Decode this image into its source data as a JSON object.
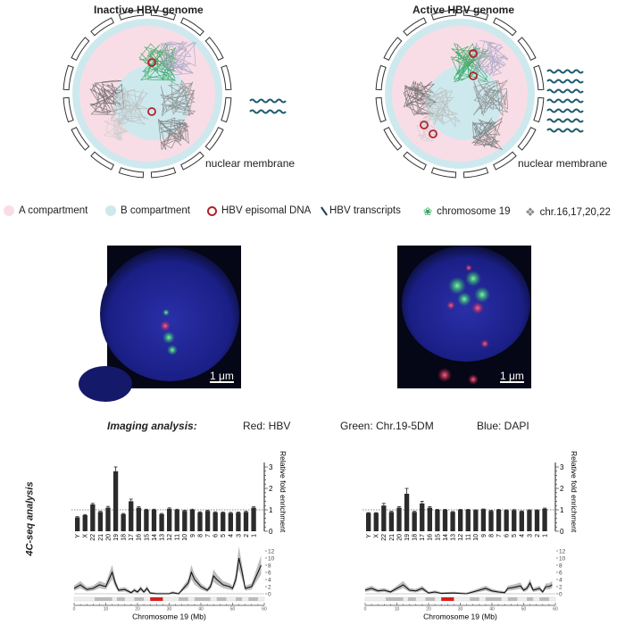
{
  "panels": {
    "inactive_title": "Inactive HBV genome",
    "active_title": "Active HBV genome",
    "membrane_label": "nuclear membrane"
  },
  "legend": [
    {
      "label": "A compartment",
      "icon": "pink-dot-icon",
      "color": "#f9dde6"
    },
    {
      "label": "B compartment",
      "icon": "cyan-dot-icon",
      "color": "#cde9ee"
    },
    {
      "label": "HBV episomal DNA",
      "icon": "red-ring-icon",
      "color": "#b0242a"
    },
    {
      "label": "HBV transcripts",
      "icon": "transcript-line-icon",
      "color": "#1c3f5a"
    },
    {
      "label": "chromosome 19",
      "icon": "green-chromatin-icon",
      "color": "#2fa35b"
    },
    {
      "label": "chr.16,17,20,22",
      "icon": "gray-chromatin-icon",
      "color": "#888888"
    }
  ],
  "microscopy": {
    "scale_bar": "1 μm"
  },
  "imaging": {
    "heading": "Imaging analysis:",
    "red": "Red: HBV",
    "green": "Green: Chr.19-5DM",
    "blue": "Blue: DAPI"
  },
  "side_label": "4C-seq analysis",
  "chart_data": [
    {
      "type": "bar",
      "panel": "inactive",
      "categories": [
        "Y",
        "X",
        "22",
        "21",
        "20",
        "19",
        "18",
        "17",
        "16",
        "15",
        "14",
        "13",
        "12",
        "11",
        "10",
        "9",
        "8",
        "7",
        "6",
        "5",
        "4",
        "3",
        "2",
        "1"
      ],
      "values": [
        0.65,
        0.75,
        1.25,
        0.9,
        1.1,
        2.8,
        0.8,
        1.4,
        1.1,
        1.0,
        1.0,
        0.8,
        1.05,
        1.0,
        0.95,
        1.0,
        0.88,
        0.95,
        0.88,
        0.87,
        0.85,
        0.87,
        0.9,
        1.1
      ],
      "errors": [
        0.03,
        0.03,
        0.05,
        0.03,
        0.06,
        0.2,
        0.03,
        0.1,
        0.04,
        0.03,
        0.03,
        0.03,
        0.04,
        0.03,
        0.03,
        0.03,
        0.03,
        0.03,
        0.03,
        0.03,
        0.03,
        0.03,
        0.03,
        0.04
      ],
      "ylabel": "Relative fold enrichment",
      "ylim": [
        0,
        3
      ],
      "yticks": [
        "0",
        "1",
        "2",
        "3"
      ],
      "reference_line": 1
    },
    {
      "type": "bar",
      "panel": "active",
      "categories": [
        "Y",
        "X",
        "22",
        "21",
        "20",
        "19",
        "18",
        "17",
        "16",
        "15",
        "14",
        "13",
        "12",
        "11",
        "10",
        "9",
        "8",
        "7",
        "6",
        "5",
        "4",
        "3",
        "2",
        "1"
      ],
      "values": [
        0.85,
        0.85,
        1.2,
        0.9,
        1.1,
        1.75,
        0.9,
        1.3,
        1.1,
        1.0,
        1.0,
        0.9,
        1.0,
        1.0,
        0.98,
        1.02,
        0.95,
        1.0,
        0.98,
        0.98,
        0.93,
        0.98,
        0.98,
        1.05
      ],
      "errors": [
        0.02,
        0.02,
        0.1,
        0.03,
        0.05,
        0.25,
        0.03,
        0.1,
        0.05,
        0.02,
        0.02,
        0.02,
        0.02,
        0.02,
        0.02,
        0.02,
        0.02,
        0.02,
        0.02,
        0.03,
        0.02,
        0.02,
        0.02,
        0.03
      ],
      "ylabel": "Relative fold enrichment",
      "ylim": [
        0,
        3
      ],
      "yticks": [
        "0",
        "1",
        "2",
        "3"
      ],
      "reference_line": 1
    },
    {
      "type": "line",
      "panel": "inactive",
      "xlabel": "Chromosome 19 (Mb)",
      "xlim": [
        0,
        60
      ],
      "ylim": [
        0,
        12
      ],
      "xticks": [
        "0",
        "10",
        "20",
        "30",
        "40",
        "50",
        "60"
      ],
      "yticks": [
        "0",
        "2",
        "4",
        "6",
        "8",
        "10",
        "12"
      ],
      "points": [
        [
          0,
          1.5
        ],
        [
          2,
          2.5
        ],
        [
          4,
          1.2
        ],
        [
          6,
          1.5
        ],
        [
          8,
          2.5
        ],
        [
          10,
          2
        ],
        [
          11,
          4
        ],
        [
          12,
          6
        ],
        [
          13,
          3
        ],
        [
          14,
          1
        ],
        [
          16,
          1.2
        ],
        [
          18,
          0.3
        ],
        [
          19,
          1
        ],
        [
          20,
          0.5
        ],
        [
          21,
          1.5
        ],
        [
          22,
          0.5
        ],
        [
          23,
          1.5
        ],
        [
          24,
          0.2
        ],
        [
          26,
          0
        ],
        [
          30,
          0
        ],
        [
          31,
          0.3
        ],
        [
          33,
          0
        ],
        [
          35,
          2
        ],
        [
          36,
          3
        ],
        [
          37,
          6
        ],
        [
          38,
          4
        ],
        [
          40,
          2
        ],
        [
          42,
          1
        ],
        [
          43,
          2
        ],
        [
          44,
          5
        ],
        [
          45,
          4
        ],
        [
          47,
          2.5
        ],
        [
          49,
          2
        ],
        [
          50,
          1.5
        ],
        [
          51,
          4
        ],
        [
          52,
          10
        ],
        [
          53,
          6
        ],
        [
          54,
          1.5
        ],
        [
          56,
          2
        ],
        [
          57,
          4
        ],
        [
          58,
          6
        ],
        [
          59,
          8
        ]
      ],
      "viewpoint_mb": [
        24,
        28
      ]
    },
    {
      "type": "line",
      "panel": "active",
      "xlabel": "Chromosome 19 (Mb)",
      "xlim": [
        0,
        60
      ],
      "ylim": [
        0,
        12
      ],
      "xticks": [
        "0",
        "10",
        "20",
        "30",
        "40",
        "50",
        "60"
      ],
      "yticks": [
        "0",
        "2",
        "4",
        "6",
        "8",
        "10",
        "12"
      ],
      "points": [
        [
          0,
          1
        ],
        [
          2,
          1.5
        ],
        [
          4,
          0.8
        ],
        [
          6,
          1
        ],
        [
          8,
          0.5
        ],
        [
          10,
          1.5
        ],
        [
          12,
          2.5
        ],
        [
          14,
          1
        ],
        [
          16,
          0.8
        ],
        [
          18,
          1.5
        ],
        [
          20,
          0.2
        ],
        [
          22,
          0.5
        ],
        [
          24,
          0.1
        ],
        [
          28,
          0.2
        ],
        [
          32,
          0
        ],
        [
          34,
          0.5
        ],
        [
          36,
          1
        ],
        [
          38,
          1.5
        ],
        [
          40,
          0.8
        ],
        [
          42,
          0.5
        ],
        [
          44,
          0.3
        ],
        [
          45,
          1.5
        ],
        [
          47,
          1.8
        ],
        [
          49,
          2.2
        ],
        [
          50,
          1
        ],
        [
          51,
          1.5
        ],
        [
          52,
          3
        ],
        [
          53,
          1
        ],
        [
          55,
          1.5
        ],
        [
          56,
          0.5
        ],
        [
          57,
          2
        ],
        [
          58,
          2
        ],
        [
          59,
          2.5
        ]
      ],
      "viewpoint_mb": [
        24,
        28
      ]
    }
  ]
}
